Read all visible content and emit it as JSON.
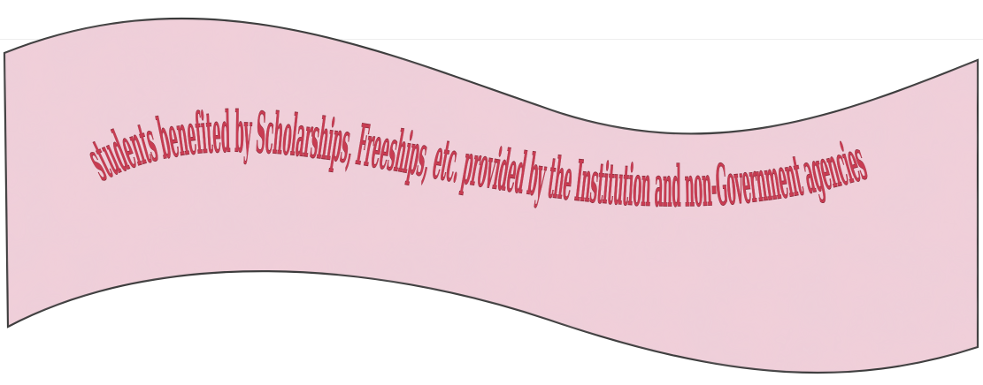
{
  "banner": {
    "text": "students benefited by Scholarships, Freeships, etc. provided by the Institution and non-Government agencies",
    "fill_color": "#f0cfd9",
    "texture_color": "#d9b3c3",
    "outline_color": "#3a3a3a",
    "text_color": "#c83c52",
    "text_outline_color": "#8a2a3a"
  }
}
